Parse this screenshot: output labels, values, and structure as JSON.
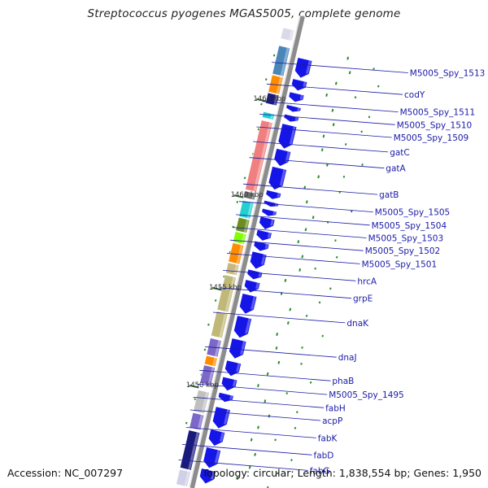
{
  "title": "Streptococcus pyogenes MGAS5005, complete genome",
  "accession": "Accession: NC_007297",
  "summary": "Topology: circular; Length: 1,838,554 bp; Genes: 1,950",
  "colors": {
    "backbone": "#8c8c8c",
    "cds": "#1515e8",
    "gc_skew": "#2e8b2e",
    "label": "#1a1aa8"
  },
  "map": {
    "ticks": [
      {
        "label": "1465 kbp",
        "t": 0.188
      },
      {
        "label": "1460 kbp",
        "t": 0.392
      },
      {
        "label": "1455 kbp",
        "t": 0.588
      },
      {
        "label": "1450 kbp",
        "t": 0.795
      }
    ],
    "gene_labels": [
      {
        "text": "M5005_Spy_1513",
        "t": 0.125
      },
      {
        "text": "codY",
        "t": 0.171
      },
      {
        "text": "M5005_Spy_1511",
        "t": 0.208
      },
      {
        "text": "M5005_Spy_1510",
        "t": 0.235
      },
      {
        "text": "M5005_Spy_1509",
        "t": 0.262
      },
      {
        "text": "gatC",
        "t": 0.293
      },
      {
        "text": "gatA",
        "t": 0.327
      },
      {
        "text": "gatB",
        "t": 0.383
      },
      {
        "text": "M5005_Spy_1505",
        "t": 0.42
      },
      {
        "text": "M5005_Spy_1504",
        "t": 0.448
      },
      {
        "text": "M5005_Spy_1503",
        "t": 0.475
      },
      {
        "text": "M5005_Spy_1502",
        "t": 0.502
      },
      {
        "text": "M5005_Spy_1501",
        "t": 0.53
      },
      {
        "text": "hrcA",
        "t": 0.566
      },
      {
        "text": "grpE",
        "t": 0.603
      },
      {
        "text": "dnaK",
        "t": 0.655
      },
      {
        "text": "dnaJ",
        "t": 0.728
      },
      {
        "text": "phaB",
        "t": 0.778
      },
      {
        "text": "M5005_Spy_1495",
        "t": 0.807
      },
      {
        "text": "fabH",
        "t": 0.835
      },
      {
        "text": "acpP",
        "t": 0.862
      },
      {
        "text": "fabK",
        "t": 0.899
      },
      {
        "text": "fabD",
        "t": 0.935
      },
      {
        "text": "fabG",
        "t": 0.968
      }
    ],
    "outer_features": [
      {
        "t0": 0.032,
        "t1": 0.055,
        "color": "#d9d9e8"
      },
      {
        "t0": 0.07,
        "t1": 0.13,
        "color": "#4a86b8"
      },
      {
        "t0": 0.132,
        "t1": 0.168,
        "color": "#ff8c00"
      },
      {
        "t0": 0.17,
        "t1": 0.192,
        "color": "#1a1a7a"
      },
      {
        "t0": 0.21,
        "t1": 0.222,
        "color": "#22d0d0"
      },
      {
        "t0": 0.228,
        "t1": 0.375,
        "color": "#f08080"
      },
      {
        "t0": 0.378,
        "t1": 0.392,
        "color": "#6e6e6e"
      },
      {
        "t0": 0.398,
        "t1": 0.432,
        "color": "#22d0d0"
      },
      {
        "t0": 0.434,
        "t1": 0.462,
        "color": "#6b8e23"
      },
      {
        "t0": 0.464,
        "t1": 0.486,
        "color": "#7fff00"
      },
      {
        "t0": 0.488,
        "t1": 0.528,
        "color": "#ff8c00"
      },
      {
        "t0": 0.53,
        "t1": 0.552,
        "color": "#c8b880"
      },
      {
        "t0": 0.556,
        "t1": 0.63,
        "color": "#c0b878"
      },
      {
        "t0": 0.633,
        "t1": 0.685,
        "color": "#c0b878"
      },
      {
        "t0": 0.69,
        "t1": 0.725,
        "color": "#7b68c8"
      },
      {
        "t0": 0.727,
        "t1": 0.745,
        "color": "#ff8c00"
      },
      {
        "t0": 0.747,
        "t1": 0.785,
        "color": "#7b68c8"
      },
      {
        "t0": 0.8,
        "t1": 0.845,
        "color": "#c0c0c0"
      },
      {
        "t0": 0.848,
        "t1": 0.88,
        "color": "#7b68c8"
      },
      {
        "t0": 0.885,
        "t1": 0.965,
        "color": "#1a1a7a"
      },
      {
        "t0": 0.968,
        "t1": 1.0,
        "color": "#d0d0e8"
      }
    ],
    "cds_blocks": [
      {
        "t0": 0.085,
        "t1": 0.125,
        "dir": "fwd"
      },
      {
        "t0": 0.13,
        "t1": 0.152,
        "dir": "fwd"
      },
      {
        "t0": 0.158,
        "t1": 0.176,
        "dir": "fwd"
      },
      {
        "t0": 0.185,
        "t1": 0.197,
        "dir": "fwd"
      },
      {
        "t0": 0.205,
        "t1": 0.218,
        "dir": "fwd"
      },
      {
        "t0": 0.225,
        "t1": 0.275,
        "dir": "fwd"
      },
      {
        "t0": 0.278,
        "t1": 0.312,
        "dir": "fwd"
      },
      {
        "t0": 0.316,
        "t1": 0.362,
        "dir": "fwd"
      },
      {
        "t0": 0.366,
        "t1": 0.382,
        "dir": "fwd"
      },
      {
        "t0": 0.388,
        "t1": 0.398,
        "dir": "fwd"
      },
      {
        "t0": 0.405,
        "t1": 0.418,
        "dir": "fwd"
      },
      {
        "t0": 0.422,
        "t1": 0.446,
        "dir": "fwd"
      },
      {
        "t0": 0.45,
        "t1": 0.47,
        "dir": "fwd"
      },
      {
        "t0": 0.474,
        "t1": 0.492,
        "dir": "fwd"
      },
      {
        "t0": 0.496,
        "t1": 0.53,
        "dir": "fwd"
      },
      {
        "t0": 0.534,
        "t1": 0.552,
        "dir": "fwd"
      },
      {
        "t0": 0.556,
        "t1": 0.58,
        "dir": "fwd"
      },
      {
        "t0": 0.585,
        "t1": 0.625,
        "dir": "fwd"
      },
      {
        "t0": 0.632,
        "t1": 0.676,
        "dir": "fwd"
      },
      {
        "t0": 0.68,
        "t1": 0.72,
        "dir": "fwd"
      },
      {
        "t0": 0.727,
        "t1": 0.757,
        "dir": "fwd"
      },
      {
        "t0": 0.762,
        "t1": 0.788,
        "dir": "fwd"
      },
      {
        "t0": 0.795,
        "t1": 0.812,
        "dir": "fwd"
      },
      {
        "t0": 0.825,
        "t1": 0.868,
        "dir": "fwd"
      },
      {
        "t0": 0.873,
        "t1": 0.905,
        "dir": "fwd"
      },
      {
        "t0": 0.911,
        "t1": 0.952,
        "dir": "fwd"
      },
      {
        "t0": 0.956,
        "t1": 0.985,
        "dir": "fwd"
      }
    ]
  }
}
